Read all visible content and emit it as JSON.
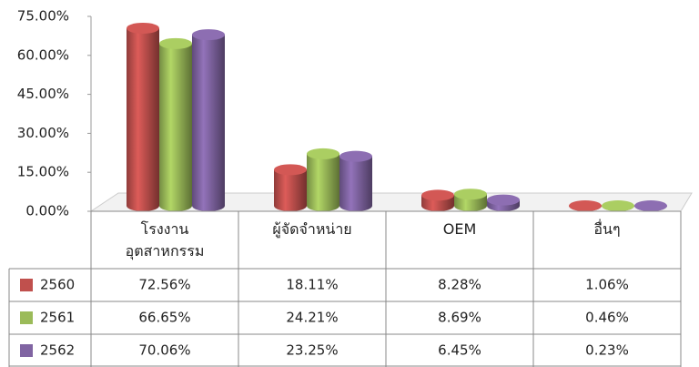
{
  "chart_data": {
    "type": "bar",
    "categories": [
      "โรงงาน\nอุตสาหกรรม",
      "ผู้จัดจำหน่าย",
      "OEM",
      "อื่นๆ"
    ],
    "series": [
      {
        "name": "2560",
        "color": "#c0504d",
        "values": [
          72.56,
          18.11,
          8.28,
          1.06
        ],
        "value_labels": [
          "72.56%",
          "18.11%",
          "8.28%",
          "1.06%"
        ]
      },
      {
        "name": "2561",
        "color": "#9bbb59",
        "values": [
          66.65,
          24.21,
          8.69,
          0.46
        ],
        "value_labels": [
          "66.65%",
          "24.21%",
          "8.69%",
          "0.46%"
        ]
      },
      {
        "name": "2562",
        "color": "#8064a2",
        "values": [
          70.06,
          23.25,
          6.45,
          0.23
        ],
        "value_labels": [
          "70.06%",
          "23.25%",
          "6.45%",
          "0.23%"
        ]
      }
    ],
    "ylim": [
      0,
      75
    ],
    "yticks": [
      {
        "value": 0,
        "label": "0.00%"
      },
      {
        "value": 15,
        "label": "15.00%"
      },
      {
        "value": 30,
        "label": "30.00%"
      },
      {
        "value": 45,
        "label": "45.00%"
      },
      {
        "value": 60,
        "label": "60.00%"
      },
      {
        "value": 75,
        "label": "75.00%"
      }
    ]
  }
}
